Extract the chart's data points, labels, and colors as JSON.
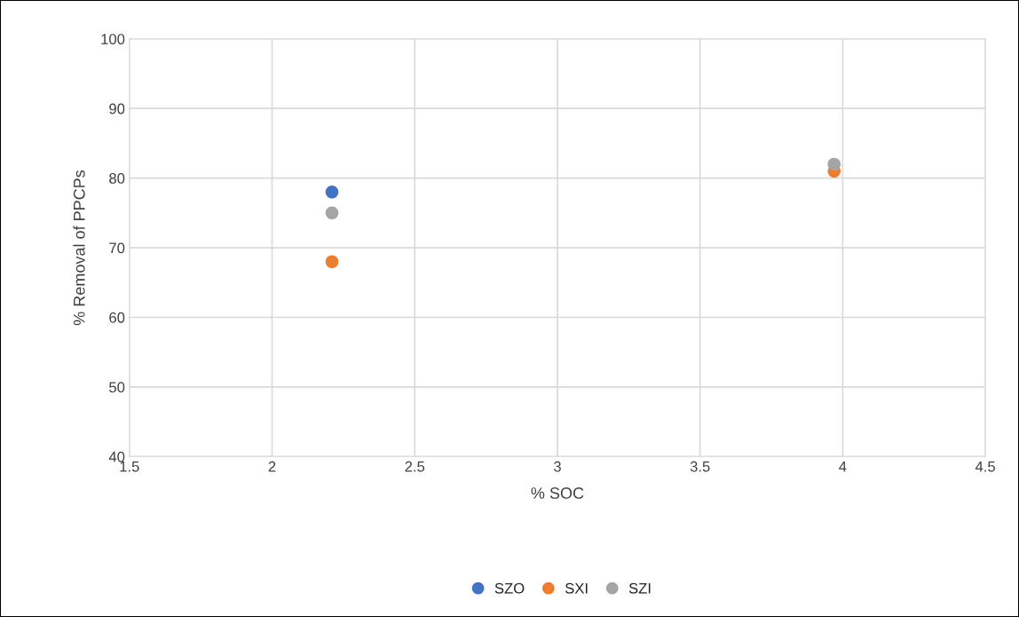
{
  "chart_data": {
    "type": "scatter",
    "xlabel": "% SOC",
    "ylabel": "% Removal of PPCPs",
    "x": [
      2.21,
      3.97
    ],
    "series": [
      {
        "name": "SZO",
        "color": "#4472c4",
        "values": [
          78,
          null
        ]
      },
      {
        "name": "SXI",
        "color": "#ed7d31",
        "values": [
          68,
          81
        ]
      },
      {
        "name": "SZI",
        "color": "#a5a5a5",
        "values": [
          75,
          82
        ]
      }
    ],
    "xlim": [
      1.5,
      4.5
    ],
    "xticks": [
      1.5,
      2,
      2.5,
      3,
      3.5,
      4,
      4.5
    ],
    "ylim": [
      40,
      100
    ],
    "yticks": [
      40,
      50,
      60,
      70,
      80,
      90,
      100
    ],
    "grid": true,
    "legend": "bottom",
    "marker": "circle"
  }
}
